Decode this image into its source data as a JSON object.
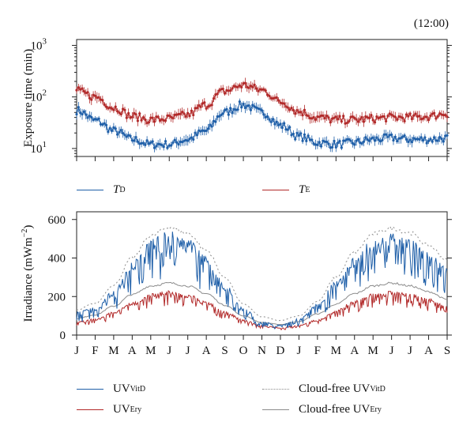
{
  "figure": {
    "time_label": "(12:00)"
  },
  "chart_data": [
    {
      "id": "exposure",
      "type": "line",
      "scale": "log",
      "ylabel": "Exposure time (min)",
      "ylim": [
        7,
        1300
      ],
      "yticks": [
        {
          "value": 10,
          "base": "10",
          "exp": "1"
        },
        {
          "value": 100,
          "base": "10",
          "exp": "2"
        },
        {
          "value": 1000,
          "base": "10",
          "exp": "3"
        }
      ],
      "x_months": 20,
      "legend_placement": "bottom",
      "series": [
        {
          "name_main": "T",
          "name_sub": "D",
          "color": "#1f5fa8",
          "markers": true,
          "keypoints": [
            [
              0,
              55
            ],
            [
              1,
              35
            ],
            [
              2,
              22
            ],
            [
              3,
              15
            ],
            [
              4,
              12
            ],
            [
              5,
              12
            ],
            [
              6,
              15
            ],
            [
              7,
              22
            ],
            [
              8,
              50
            ],
            [
              9,
              70
            ],
            [
              10,
              50
            ],
            [
              11,
              28
            ],
            [
              12,
              17
            ],
            [
              13,
              13
            ],
            [
              14,
              12
            ],
            [
              15,
              13
            ],
            [
              16,
              15
            ],
            [
              17,
              16
            ],
            [
              18,
              15
            ],
            [
              19,
              15
            ],
            [
              20,
              16
            ]
          ]
        },
        {
          "name_main": "T",
          "name_sub": "E",
          "color": "#b22a2a",
          "markers": true,
          "keypoints": [
            [
              0,
              130
            ],
            [
              1,
              100
            ],
            [
              2,
              62
            ],
            [
              3,
              42
            ],
            [
              4,
              36
            ],
            [
              5,
              38
            ],
            [
              6,
              45
            ],
            [
              7,
              70
            ],
            [
              8,
              130
            ],
            [
              9,
              170
            ],
            [
              10,
              135
            ],
            [
              11,
              80
            ],
            [
              12,
              52
            ],
            [
              13,
              40
            ],
            [
              14,
              36
            ],
            [
              15,
              36
            ],
            [
              16,
              38
            ],
            [
              17,
              40
            ],
            [
              18,
              40
            ],
            [
              19,
              42
            ],
            [
              20,
              48
            ]
          ]
        }
      ]
    },
    {
      "id": "irradiance",
      "type": "line",
      "ylabel": "Irradiance (mWm",
      "ylabel_sup": "−2",
      "ylabel_close": ")",
      "ylim": [
        0,
        640
      ],
      "yticks": [
        0,
        200,
        400,
        600
      ],
      "grid": false,
      "legend_placement": "bottom",
      "x_tick_labels": [
        "J",
        "F",
        "M",
        "A",
        "M",
        "J",
        "J",
        "A",
        "S",
        "O",
        "N",
        "D",
        "J",
        "F",
        "M",
        "A",
        "M",
        "J",
        "J",
        "A",
        "S"
      ],
      "series": [
        {
          "name_main": "UV",
          "name_sub": "VitD",
          "color": "#1f5fa8",
          "style": "solid",
          "noisy": true,
          "noise_frac": 0.45,
          "keypoints": [
            [
              0,
              120
            ],
            [
              1,
              145
            ],
            [
              2,
              230
            ],
            [
              3,
              380
            ],
            [
              4,
              500
            ],
            [
              5,
              540
            ],
            [
              6,
              500
            ],
            [
              7,
              410
            ],
            [
              8,
              270
            ],
            [
              9,
              140
            ],
            [
              10,
              70
            ],
            [
              11,
              55
            ],
            [
              12,
              85
            ],
            [
              13,
              160
            ],
            [
              14,
              280
            ],
            [
              15,
              400
            ],
            [
              16,
              500
            ],
            [
              17,
              540
            ],
            [
              18,
              500
            ],
            [
              19,
              430
            ],
            [
              20,
              350
            ]
          ]
        },
        {
          "name_main": "UV",
          "name_sub": "Ery",
          "color": "#b22a2a",
          "style": "solid",
          "noisy": true,
          "noise_frac": 0.35,
          "keypoints": [
            [
              0,
              70
            ],
            [
              1,
              85
            ],
            [
              2,
              120
            ],
            [
              3,
              170
            ],
            [
              4,
              215
            ],
            [
              5,
              230
            ],
            [
              6,
              215
            ],
            [
              7,
              175
            ],
            [
              8,
              125
            ],
            [
              9,
              80
            ],
            [
              10,
              50
            ],
            [
              11,
              40
            ],
            [
              12,
              52
            ],
            [
              13,
              80
            ],
            [
              14,
              130
            ],
            [
              15,
              180
            ],
            [
              16,
              215
            ],
            [
              17,
              230
            ],
            [
              18,
              215
            ],
            [
              19,
              190
            ],
            [
              20,
              150
            ]
          ]
        },
        {
          "name_main": "Cloud-free UV",
          "name_sub": "VitD",
          "color": "#8c8c8c",
          "style": "dotted",
          "noisy": false,
          "keypoints": [
            [
              0,
              130
            ],
            [
              1,
              165
            ],
            [
              2,
              260
            ],
            [
              3,
              400
            ],
            [
              4,
              515
            ],
            [
              5,
              560
            ],
            [
              6,
              530
            ],
            [
              7,
              440
            ],
            [
              8,
              300
            ],
            [
              9,
              160
            ],
            [
              10,
              95
            ],
            [
              11,
              75
            ],
            [
              12,
              100
            ],
            [
              13,
              175
            ],
            [
              14,
              300
            ],
            [
              15,
              430
            ],
            [
              16,
              525
            ],
            [
              17,
              555
            ],
            [
              18,
              530
            ],
            [
              19,
              465
            ],
            [
              20,
              390
            ]
          ]
        },
        {
          "name_main": "Cloud-free UV",
          "name_sub": "Ery",
          "color": "#8c8c8c",
          "style": "solid",
          "noisy": false,
          "keypoints": [
            [
              0,
              85
            ],
            [
              1,
              105
            ],
            [
              2,
              150
            ],
            [
              3,
              210
            ],
            [
              4,
              255
            ],
            [
              5,
              270
            ],
            [
              6,
              255
            ],
            [
              7,
              215
            ],
            [
              8,
              155
            ],
            [
              9,
              100
            ],
            [
              10,
              65
            ],
            [
              11,
              55
            ],
            [
              12,
              70
            ],
            [
              13,
              110
            ],
            [
              14,
              160
            ],
            [
              15,
              215
            ],
            [
              16,
              255
            ],
            [
              17,
              270
            ],
            [
              18,
              255
            ],
            [
              19,
              225
            ],
            [
              20,
              185
            ]
          ]
        }
      ]
    }
  ]
}
